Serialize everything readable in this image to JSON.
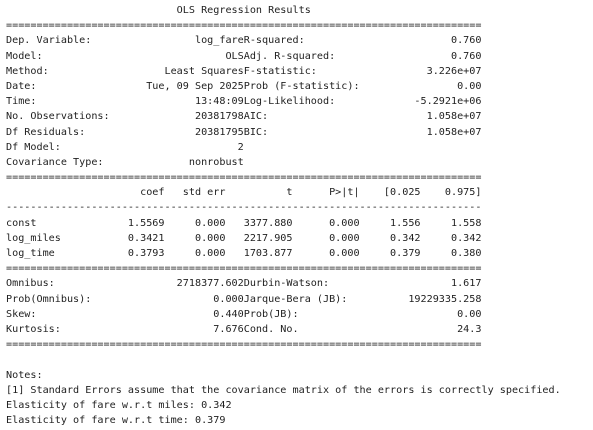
{
  "summary": {
    "title": "OLS Regression Results",
    "separator_double": "==============================================================================",
    "separator_single": "------------------------------------------------------------------------------",
    "info_rows": [
      {
        "left_label": "Dep. Variable:",
        "left_value": "log_fare",
        "right_label": "R-squared:",
        "right_value": "0.760"
      },
      {
        "left_label": "Model:",
        "left_value": "OLS",
        "right_label": "Adj. R-squared:",
        "right_value": "0.760"
      },
      {
        "left_label": "Method:",
        "left_value": "Least Squares",
        "right_label": "F-statistic:",
        "right_value": "3.226e+07"
      },
      {
        "left_label": "Date:",
        "left_value": "Tue, 09 Sep 2025",
        "right_label": "Prob (F-statistic):",
        "right_value": "0.00"
      },
      {
        "left_label": "Time:",
        "left_value": "13:48:09",
        "right_label": "Log-Likelihood:",
        "right_value": "-5.2921e+06"
      },
      {
        "left_label": "No. Observations:",
        "left_value": "20381798",
        "right_label": "AIC:",
        "right_value": "1.058e+07"
      },
      {
        "left_label": "Df Residuals:",
        "left_value": "20381795",
        "right_label": "BIC:",
        "right_value": "1.058e+07"
      },
      {
        "left_label": "Df Model:",
        "left_value": "2",
        "right_label": "",
        "right_value": ""
      },
      {
        "left_label": "Covariance Type:",
        "left_value": "nonrobust",
        "right_label": "",
        "right_value": ""
      }
    ],
    "coef_headers": [
      "",
      "coef",
      "std err",
      "t",
      "P>|t|",
      "[0.025",
      "0.975]"
    ],
    "coef_rows": [
      [
        "const",
        "1.5569",
        "0.000",
        "3377.880",
        "0.000",
        "1.556",
        "1.558"
      ],
      [
        "log_miles",
        "0.3421",
        "0.000",
        "2217.905",
        "0.000",
        "0.342",
        "0.342"
      ],
      [
        "log_time",
        "0.3793",
        "0.000",
        "1703.877",
        "0.000",
        "0.379",
        "0.380"
      ]
    ],
    "diag_rows": [
      {
        "left_label": "Omnibus:",
        "left_value": "2718377.602",
        "right_label": "Durbin-Watson:",
        "right_value": "1.617"
      },
      {
        "left_label": "Prob(Omnibus):",
        "left_value": "0.000",
        "right_label": "Jarque-Bera (JB):",
        "right_value": "19229335.258"
      },
      {
        "left_label": "Skew:",
        "left_value": "0.440",
        "right_label": "Prob(JB):",
        "right_value": "0.00"
      },
      {
        "left_label": "Kurtosis:",
        "left_value": "7.676",
        "right_label": "Cond. No.",
        "right_value": "24.3"
      }
    ]
  },
  "notes": {
    "heading": "Notes:",
    "note1": "[1] Standard Errors assume that the covariance matrix of the errors is correctly specified."
  },
  "elasticity": {
    "miles": "Elasticity of fare w.r.t miles: 0.342",
    "time": "Elasticity of fare w.r.t time: 0.379"
  }
}
